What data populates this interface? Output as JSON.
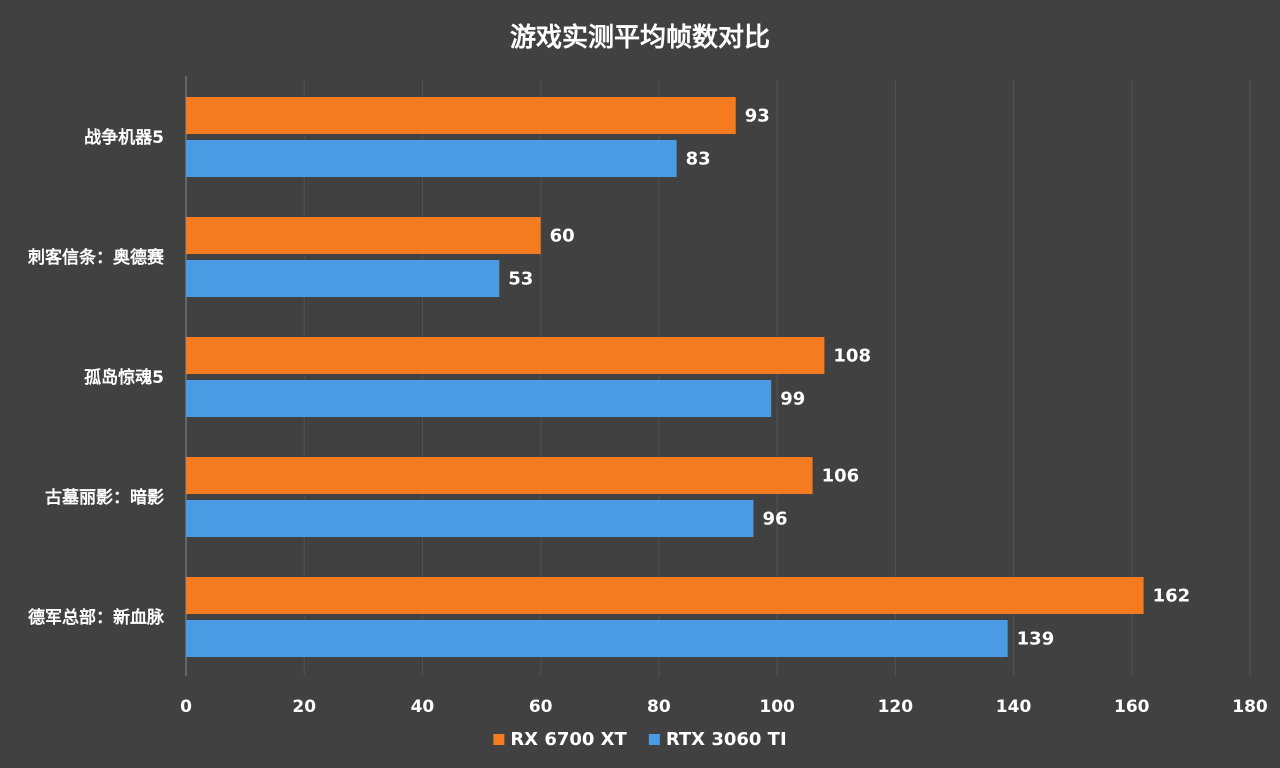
{
  "chart_data": {
    "type": "bar",
    "orientation": "horizontal",
    "title": "游戏实测平均帧数对比",
    "categories": [
      "战争机器5",
      "刺客信条：奥德赛",
      "孤岛惊魂5",
      "古墓丽影：暗影",
      "德军总部：新血脉"
    ],
    "series": [
      {
        "name": "RX 6700 XT",
        "color": "#F47B20",
        "values": [
          93,
          60,
          108,
          106,
          162
        ]
      },
      {
        "name": "RTX 3060 TI",
        "color": "#4A9BE3",
        "values": [
          83,
          53,
          99,
          96,
          139
        ]
      }
    ],
    "xlim": [
      0,
      180
    ],
    "xticks": [
      0,
      20,
      40,
      60,
      80,
      100,
      120,
      140,
      160,
      180
    ],
    "xlabel": "",
    "ylabel": "",
    "grid": true,
    "legend_position": "bottom",
    "background_color": "#414141"
  }
}
